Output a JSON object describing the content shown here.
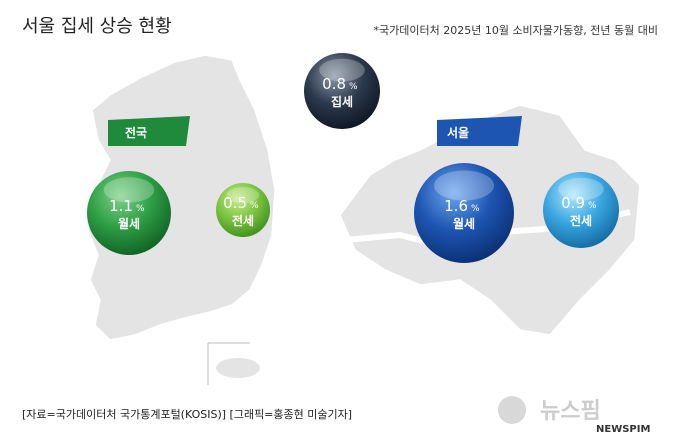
{
  "header": {
    "title": "서울 집세 상승 현황",
    "note": "*국가데이터처 2025년 10월 소비자물가동향, 전년 동월 대비"
  },
  "national": {
    "label": "전국",
    "bubbles": [
      {
        "value": "1.1",
        "unit": "%",
        "label": "월세"
      },
      {
        "value": "0.5",
        "unit": "%",
        "label": "전세"
      }
    ]
  },
  "overall": {
    "value": "0.8",
    "unit": "%",
    "label": "집세"
  },
  "seoul": {
    "label": "서울",
    "bubbles": [
      {
        "value": "1.6",
        "unit": "%",
        "label": "월세"
      },
      {
        "value": "0.9",
        "unit": "%",
        "label": "전세"
      }
    ]
  },
  "footer": {
    "credit": "[자료=국가데이터처 국가통계포털(KOSIS)] [그래픽=홍종현 미술기자]",
    "logo_ko": "뉴스핌",
    "logo_en": "NEWSPIM"
  }
}
